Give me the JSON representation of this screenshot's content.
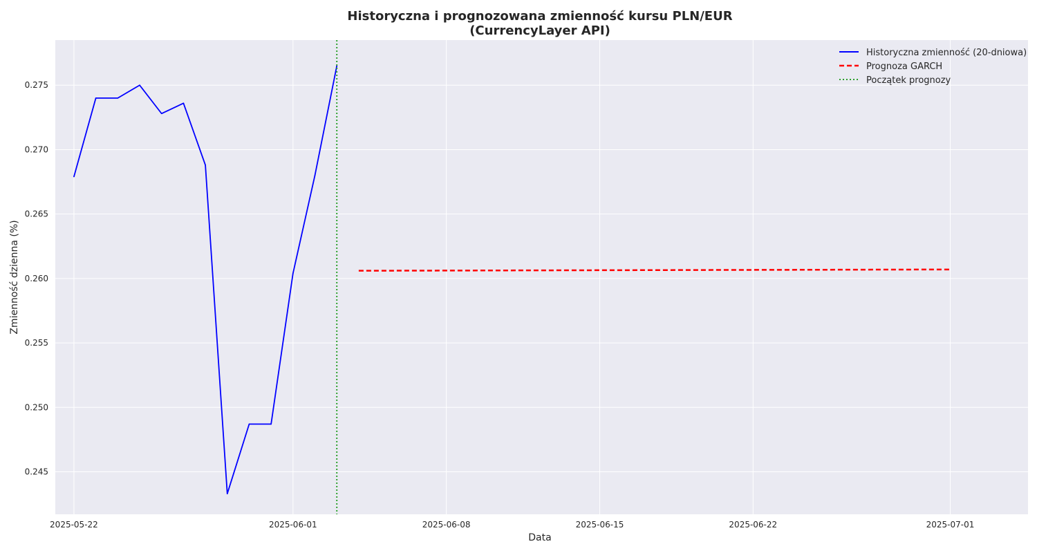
{
  "chart_data": {
    "type": "line",
    "title_line1": "Historyczna i prognozowana zmienność kursu PLN/EUR",
    "title_line2": "(CurrencyLayer API)",
    "xlabel": "Data",
    "ylabel": "Zmienność dzienna (%)",
    "x_range_days": [
      -0.85,
      43.55
    ],
    "ylim": [
      0.2417,
      0.2785
    ],
    "grid": true,
    "legend_position": "top-right",
    "x_ticks": [
      {
        "day": 0,
        "label": "2025-05-22"
      },
      {
        "day": 10,
        "label": "2025-06-01"
      },
      {
        "day": 17,
        "label": "2025-06-08"
      },
      {
        "day": 24,
        "label": "2025-06-15"
      },
      {
        "day": 31,
        "label": "2025-06-22"
      },
      {
        "day": 40,
        "label": "2025-07-01"
      }
    ],
    "y_ticks": [
      0.245,
      0.25,
      0.255,
      0.26,
      0.265,
      0.27,
      0.275
    ],
    "y_tick_labels": [
      "0.245",
      "0.250",
      "0.255",
      "0.260",
      "0.265",
      "0.270",
      "0.275"
    ],
    "series": [
      {
        "name": "Historyczna zmienność (20-dniowa)",
        "color": "#0000ff",
        "style": "solid",
        "x_start": "2025-05-22",
        "days": [
          0,
          1,
          2,
          3,
          4,
          5,
          6,
          7,
          8,
          9,
          10,
          11,
          12
        ],
        "values": [
          0.2679,
          0.274,
          0.274,
          0.275,
          0.2728,
          0.2736,
          0.2688,
          0.2433,
          0.2487,
          0.2487,
          0.2604,
          0.268,
          0.2765
        ]
      },
      {
        "name": "Prognoza GARCH",
        "color": "#ff0000",
        "style": "dashed",
        "days_range": [
          13,
          40
        ],
        "values_start": 0.2606,
        "values_end": 0.2607
      },
      {
        "name": "Początek prognozy",
        "color": "#2ca02c",
        "style": "dotted",
        "vline_day": 12
      }
    ]
  }
}
